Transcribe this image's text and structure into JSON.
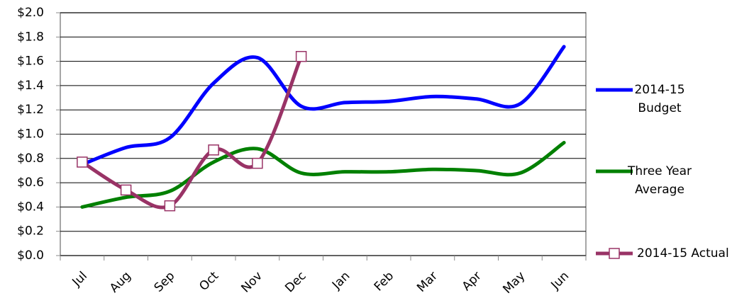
{
  "chart_data": {
    "type": "line",
    "categories": [
      "Jul",
      "Aug",
      "Sep",
      "Oct",
      "Nov",
      "Dec",
      "Jan",
      "Feb",
      "Mar",
      "Apr",
      "May",
      "Jun"
    ],
    "series": [
      {
        "name": "2014-15 Budget",
        "color": "#0000ff",
        "values": [
          0.75,
          0.89,
          0.97,
          1.42,
          1.63,
          1.23,
          1.26,
          1.27,
          1.31,
          1.29,
          1.25,
          1.72
        ]
      },
      {
        "name": "Three Year Average",
        "color": "#008000",
        "values": [
          0.4,
          0.48,
          0.53,
          0.77,
          0.88,
          0.68,
          0.69,
          0.69,
          0.71,
          0.7,
          0.68,
          0.93
        ]
      },
      {
        "name": "2014-15 Actual",
        "color": "#993366",
        "marker": "square",
        "values": [
          0.77,
          0.54,
          0.41,
          0.87,
          0.76,
          1.64,
          null,
          null,
          null,
          null,
          null,
          null
        ]
      }
    ],
    "ylim": [
      0,
      2.0
    ],
    "yticks": [
      {
        "value": 0,
        "label": "$0.0"
      },
      {
        "value": 0.2,
        "label": "$0.2"
      },
      {
        "value": 0.4,
        "label": "$0.4"
      },
      {
        "value": 0.6,
        "label": "$0.6"
      },
      {
        "value": 0.8,
        "label": "$0.8"
      },
      {
        "value": 1.0,
        "label": "$1.0"
      },
      {
        "value": 1.2,
        "label": "$1.2"
      },
      {
        "value": 1.4,
        "label": "$1.4"
      },
      {
        "value": 1.6,
        "label": "$1.6"
      },
      {
        "value": 1.8,
        "label": "$1.8"
      },
      {
        "value": 2.0,
        "label": "$2.0"
      }
    ],
    "grid": true,
    "legend": "right"
  }
}
